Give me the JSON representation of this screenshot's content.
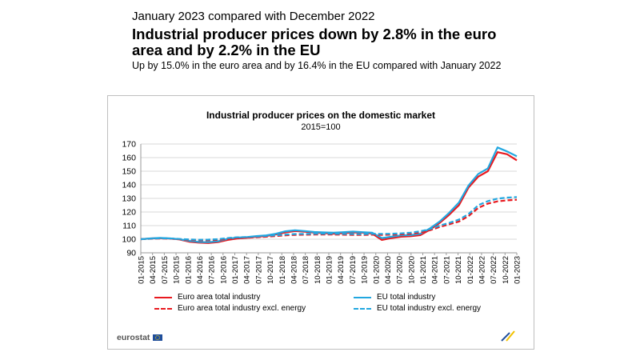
{
  "header": {
    "kicker": "January 2023 compared with December 2022",
    "headline": "Industrial producer prices down by 2.8% in the euro area and by 2.2% in the EU",
    "subheadline": "Up by 15.0% in the euro area and by 16.4% in the EU compared with January 2022"
  },
  "brand": {
    "name": "eurostat",
    "flag_icon": "eu-flag-icon"
  },
  "colors": {
    "red": "#e8191f",
    "blue": "#22a7e0",
    "grid": "#d9d9d9"
  },
  "chart_data": {
    "type": "line",
    "title": "Industrial producer prices on the domestic market",
    "subtitle": "2015=100",
    "ylim": [
      90,
      170
    ],
    "yticks": [
      90,
      100,
      110,
      120,
      130,
      140,
      150,
      160,
      170
    ],
    "x_tick_labels": [
      "01-2015",
      "04-2015",
      "07-2015",
      "10-2015",
      "01-2016",
      "04-2016",
      "07-2016",
      "10-2016",
      "01-2017",
      "04-2017",
      "07-2017",
      "10-2017",
      "01-2018",
      "04-2018",
      "07-2018",
      "10-2018",
      "01-2019",
      "04-2019",
      "07-2019",
      "10-2019",
      "01-2020",
      "04-2020",
      "07-2020",
      "10-2020",
      "01-2021",
      "04-2021",
      "07-2021",
      "10-2021",
      "01-2022",
      "04-2022",
      "07-2022",
      "10-2022",
      "01-2023"
    ],
    "legend_position": "bottom",
    "series": [
      {
        "name": "Euro area total industry",
        "color": "#e8191f",
        "dash": false,
        "values": [
          100,
          100.5,
          100.8,
          100.5,
          99.8,
          98.2,
          97.5,
          97.2,
          97.8,
          99.5,
          100.5,
          101,
          101.8,
          102.3,
          103.5,
          105,
          106,
          105.5,
          104.8,
          104.5,
          104,
          104.5,
          105,
          104.8,
          104.2,
          99.5,
          100.8,
          101.8,
          102.2,
          103,
          107,
          112,
          118,
          125,
          138,
          146,
          150,
          164,
          162.5,
          158
        ]
      },
      {
        "name": "EU total industry",
        "color": "#22a7e0",
        "dash": false,
        "values": [
          100,
          100.6,
          101,
          100.6,
          100,
          98.8,
          98,
          97.8,
          98.5,
          100.3,
          101.2,
          101.6,
          102.3,
          102.8,
          104,
          105.8,
          106.6,
          106,
          105.3,
          105,
          104.8,
          105.2,
          105.6,
          105.2,
          104.8,
          100.8,
          101.8,
          102.8,
          103,
          104,
          108,
          113,
          119.5,
          127,
          139.5,
          148,
          152,
          167.5,
          164.5,
          161
        ]
      },
      {
        "name": "Euro area total industry excl. energy",
        "color": "#e8191f",
        "dash": true,
        "values": [
          100,
          100.3,
          100.5,
          100.4,
          100,
          99.5,
          99.2,
          99.2,
          99.5,
          100.3,
          100.8,
          101,
          101.4,
          101.8,
          102.3,
          102.8,
          103.2,
          103.3,
          103.4,
          103.4,
          103.4,
          103.3,
          103.2,
          103.1,
          103.3,
          103.2,
          103.3,
          103.6,
          104,
          104.9,
          106.6,
          109,
          111,
          113,
          117,
          123,
          126.2,
          127.8,
          128.6,
          129
        ]
      },
      {
        "name": "EU total industry excl. energy",
        "color": "#22a7e0",
        "dash": true,
        "values": [
          100,
          100.4,
          100.7,
          100.6,
          100.2,
          99.8,
          99.6,
          99.7,
          100,
          100.8,
          101.4,
          101.6,
          102,
          102.4,
          102.9,
          103.4,
          103.8,
          103.9,
          104,
          104,
          104,
          103.9,
          103.8,
          103.7,
          104,
          103.9,
          104,
          104.3,
          104.8,
          105.8,
          107.5,
          110,
          112,
          114.5,
          118.5,
          125,
          128,
          129.8,
          130.6,
          131
        ]
      }
    ]
  }
}
